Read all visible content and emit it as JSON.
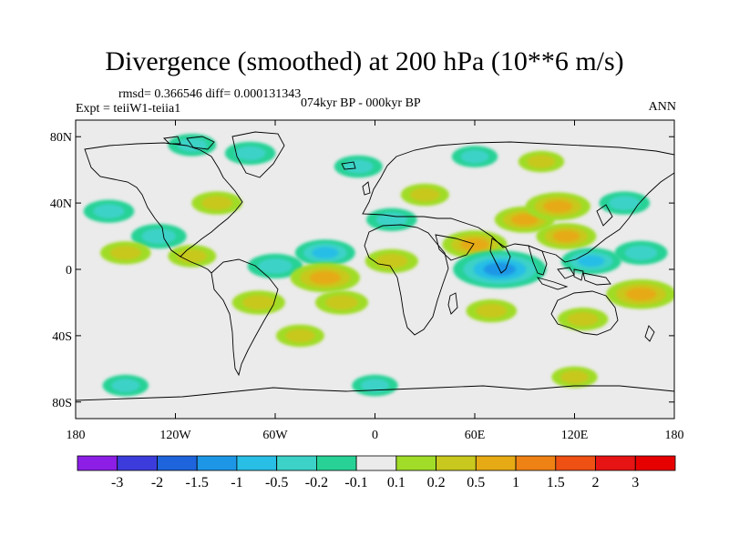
{
  "header": {
    "title": "Divergence (smoothed) at 200 hPa (10**6 m/s)",
    "stats": "rmsd= 0.366546 diff= 0.000131343",
    "experiment": "Expt = teiiW1-teiia1",
    "period": "074kyr BP - 000kyr BP",
    "season": "ANN"
  },
  "axes": {
    "lat_ticks": [
      "80N",
      "40N",
      "0",
      "40S",
      "80S"
    ],
    "lon_ticks": [
      "180",
      "120W",
      "60W",
      "0",
      "60E",
      "120E",
      "180"
    ]
  },
  "colorbar": {
    "labels": [
      "-3",
      "-2",
      "-1.5",
      "-1",
      "-0.5",
      "-0.2",
      "-0.1",
      "0.1",
      "0.2",
      "0.5",
      "1",
      "1.5",
      "2",
      "3"
    ],
    "colors": [
      "#8c1ee6",
      "#3c3cdc",
      "#1e64dc",
      "#1e96e6",
      "#28bee6",
      "#3cd2c8",
      "#28d296",
      "#ebebeb",
      "#a0dc28",
      "#c8c81e",
      "#e6aa14",
      "#ef8214",
      "#ef5014",
      "#e61414"
    ]
  },
  "chart_data": {
    "type": "heatmap",
    "title": "Divergence (smoothed) at 200 hPa (10**6 m/s)",
    "units": "10**6 m/s",
    "lon_range": [
      -180,
      180
    ],
    "lat_range": [
      -90,
      90
    ],
    "levels": [
      -3,
      -2,
      -1.5,
      -1,
      -0.5,
      -0.2,
      -0.1,
      0.1,
      0.2,
      0.5,
      1,
      1.5,
      2,
      3
    ],
    "features": [
      {
        "lon": -130,
        "lat": 20,
        "value": -0.4
      },
      {
        "lon": -150,
        "lat": 10,
        "value": 0.3
      },
      {
        "lon": -110,
        "lat": 8,
        "value": 0.25
      },
      {
        "lon": -95,
        "lat": 40,
        "value": 0.3
      },
      {
        "lon": -160,
        "lat": 35,
        "value": -0.3
      },
      {
        "lon": -60,
        "lat": 2,
        "value": -0.4
      },
      {
        "lon": -30,
        "lat": 10,
        "value": -0.5
      },
      {
        "lon": -30,
        "lat": -5,
        "value": 0.7
      },
      {
        "lon": -20,
        "lat": -20,
        "value": 0.35
      },
      {
        "lon": -70,
        "lat": -20,
        "value": 0.35
      },
      {
        "lon": -45,
        "lat": -40,
        "value": 0.25
      },
      {
        "lon": 10,
        "lat": 5,
        "value": 0.35
      },
      {
        "lon": 10,
        "lat": 30,
        "value": -0.3
      },
      {
        "lon": 30,
        "lat": 45,
        "value": 0.25
      },
      {
        "lon": 60,
        "lat": 15,
        "value": 0.6
      },
      {
        "lon": 75,
        "lat": 0,
        "value": -1.2
      },
      {
        "lon": 70,
        "lat": -25,
        "value": 0.3
      },
      {
        "lon": 90,
        "lat": 30,
        "value": 0.5
      },
      {
        "lon": 110,
        "lat": 38,
        "value": 0.6
      },
      {
        "lon": 115,
        "lat": 20,
        "value": 0.5
      },
      {
        "lon": 130,
        "lat": 5,
        "value": -0.5
      },
      {
        "lon": 150,
        "lat": 40,
        "value": -0.3
      },
      {
        "lon": 160,
        "lat": 10,
        "value": -0.35
      },
      {
        "lon": 160,
        "lat": -15,
        "value": 0.7
      },
      {
        "lon": 125,
        "lat": -30,
        "value": 0.3
      },
      {
        "lon": -110,
        "lat": 75,
        "value": -0.25
      },
      {
        "lon": -75,
        "lat": 70,
        "value": -0.3
      },
      {
        "lon": -10,
        "lat": 62,
        "value": -0.25
      },
      {
        "lon": 60,
        "lat": 68,
        "value": -0.2
      },
      {
        "lon": 100,
        "lat": 65,
        "value": 0.2
      },
      {
        "lon": -150,
        "lat": -70,
        "value": -0.2
      },
      {
        "lon": 0,
        "lat": -70,
        "value": -0.2
      },
      {
        "lon": 120,
        "lat": -65,
        "value": 0.2
      }
    ]
  }
}
